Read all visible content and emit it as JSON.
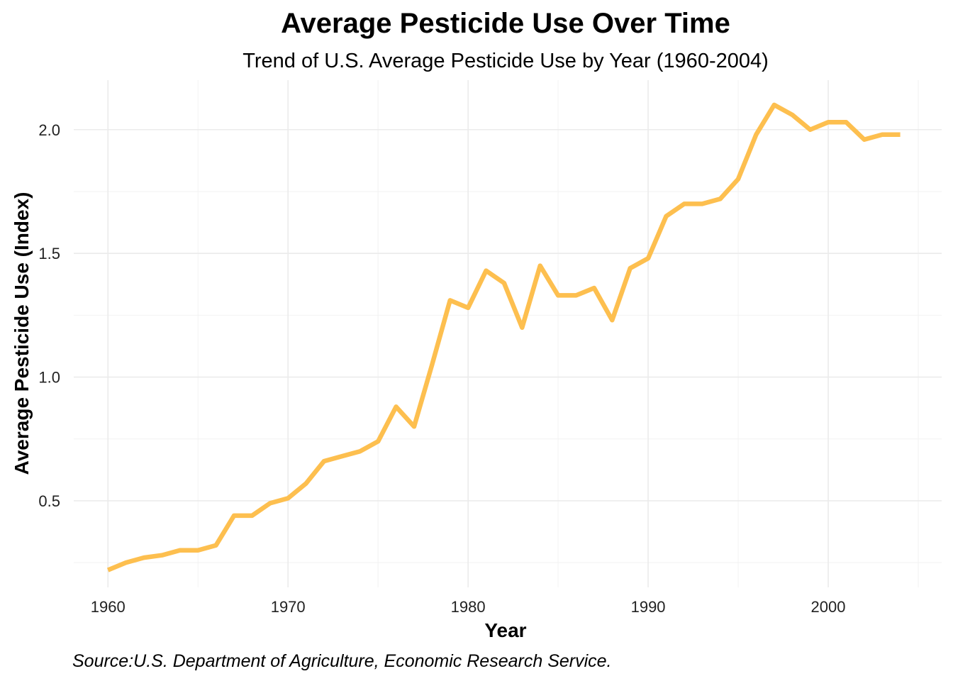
{
  "chart_data": {
    "type": "line",
    "title": "Average Pesticide Use Over Time",
    "subtitle": "Trend of U.S. Average Pesticide Use by Year (1960-2004)",
    "xlabel": "Year",
    "ylabel": "Average Pesticide Use (Index)",
    "caption": "Source:U.S. Department of Agriculture, Economic Research Service.",
    "xlim": [
      1958.1,
      2006.3
    ],
    "ylim": [
      0.15,
      2.2
    ],
    "x_ticks": [
      1960,
      1970,
      1980,
      1990,
      2000
    ],
    "x_tick_labels": [
      "1960",
      "1970",
      "1980",
      "1990",
      "2000"
    ],
    "y_ticks": [
      0.5,
      1.0,
      1.5,
      2.0
    ],
    "y_tick_labels": [
      "0.5",
      "1.0",
      "1.5",
      "2.0"
    ],
    "grid": true,
    "legend": "none",
    "line_color": "#FDBF4F",
    "series": [
      {
        "x": [
          1960,
          1961,
          1962,
          1963,
          1964,
          1965,
          1966,
          1967,
          1968,
          1969,
          1970,
          1971,
          1972,
          1973,
          1974,
          1975,
          1976,
          1977,
          1978,
          1979,
          1980,
          1981,
          1982,
          1983,
          1984,
          1985,
          1986,
          1987,
          1988,
          1989,
          1990,
          1991,
          1992,
          1993,
          1994,
          1995,
          1996,
          1997,
          1998,
          1999,
          2000,
          2001,
          2002,
          2003,
          2004
        ],
        "values": [
          0.22,
          0.25,
          0.27,
          0.28,
          0.3,
          0.3,
          0.32,
          0.44,
          0.44,
          0.49,
          0.51,
          0.57,
          0.66,
          0.68,
          0.7,
          0.74,
          0.88,
          0.8,
          1.05,
          1.31,
          1.28,
          1.43,
          1.38,
          1.2,
          1.45,
          1.33,
          1.33,
          1.36,
          1.23,
          1.44,
          1.48,
          1.65,
          1.7,
          1.7,
          1.72,
          1.8,
          1.98,
          2.1,
          2.06,
          2.0,
          2.03,
          2.03,
          1.96,
          1.98,
          1.98
        ]
      }
    ]
  }
}
